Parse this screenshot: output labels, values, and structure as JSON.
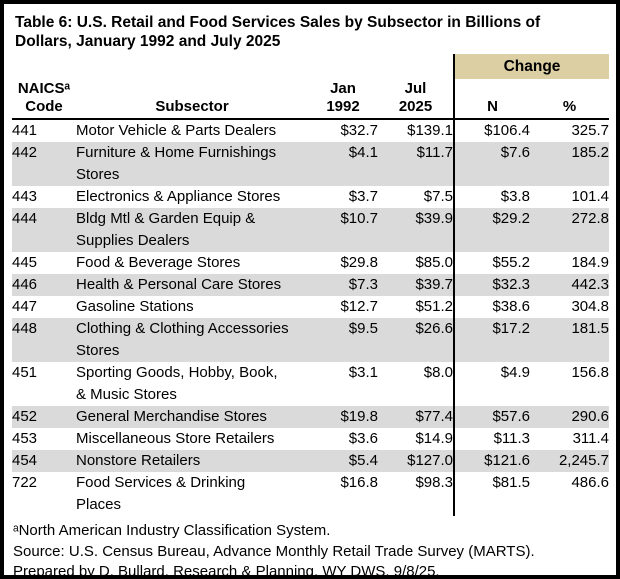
{
  "title": "Table 6: U.S. Retail and Food Services Sales by Subsector in Billions of\nDollars, January 1992 and July 2025",
  "colors": {
    "change_banner_bg": "#DCCFA3",
    "row_stripe_bg": "#DADADA",
    "border": "#000000"
  },
  "header": {
    "change_label": "Change",
    "naics_code": "NAICSᵃ\nCode",
    "subsector": "Subsector",
    "jan_1992": "Jan\n1992",
    "jul_2025": "Jul\n2025",
    "n": "N",
    "pct": "%"
  },
  "rows": [
    {
      "code": "441",
      "subsector": "Motor Vehicle & Parts Dealers",
      "jan1992": "$32.7",
      "jul2025": "$139.1",
      "n": "$106.4",
      "pct": "325.7",
      "shaded": false
    },
    {
      "code": "442",
      "subsector": "Furniture & Home Furnishings\nStores",
      "jan1992": "$4.1",
      "jul2025": "$11.7",
      "n": "$7.6",
      "pct": "185.2",
      "shaded": true
    },
    {
      "code": "443",
      "subsector": "Electronics & Appliance Stores",
      "jan1992": "$3.7",
      "jul2025": "$7.5",
      "n": "$3.8",
      "pct": "101.4",
      "shaded": false
    },
    {
      "code": "444",
      "subsector": "Bldg Mtl & Garden Equip &\nSupplies Dealers",
      "jan1992": "$10.7",
      "jul2025": "$39.9",
      "n": "$29.2",
      "pct": "272.8",
      "shaded": true
    },
    {
      "code": "445",
      "subsector": "Food & Beverage Stores",
      "jan1992": "$29.8",
      "jul2025": "$85.0",
      "n": "$55.2",
      "pct": "184.9",
      "shaded": false
    },
    {
      "code": "446",
      "subsector": "Health & Personal Care Stores",
      "jan1992": "$7.3",
      "jul2025": "$39.7",
      "n": "$32.3",
      "pct": "442.3",
      "shaded": true
    },
    {
      "code": "447",
      "subsector": "Gasoline Stations",
      "jan1992": "$12.7",
      "jul2025": "$51.2",
      "n": "$38.6",
      "pct": "304.8",
      "shaded": false
    },
    {
      "code": "448",
      "subsector": "Clothing & Clothing Accessories\nStores",
      "jan1992": "$9.5",
      "jul2025": "$26.6",
      "n": "$17.2",
      "pct": "181.5",
      "shaded": true
    },
    {
      "code": "451",
      "subsector": "Sporting Goods, Hobby, Book,\n& Music Stores",
      "jan1992": "$3.1",
      "jul2025": "$8.0",
      "n": "$4.9",
      "pct": "156.8",
      "shaded": false
    },
    {
      "code": "452",
      "subsector": "General Merchandise Stores",
      "jan1992": "$19.8",
      "jul2025": "$77.4",
      "n": "$57.6",
      "pct": "290.6",
      "shaded": true
    },
    {
      "code": "453",
      "subsector": "Miscellaneous Store Retailers",
      "jan1992": "$3.6",
      "jul2025": "$14.9",
      "n": "$11.3",
      "pct": "311.4",
      "shaded": false
    },
    {
      "code": "454",
      "subsector": "Nonstore Retailers",
      "jan1992": "$5.4",
      "jul2025": "$127.0",
      "n": "$121.6",
      "pct": "2,245.7",
      "shaded": true
    },
    {
      "code": "722",
      "subsector": "Food Services & Drinking\nPlaces",
      "jan1992": "$16.8",
      "jul2025": "$98.3",
      "n": "$81.5",
      "pct": "486.6",
      "shaded": false
    }
  ],
  "footnotes": {
    "naics_note": "ᵃNorth American Industry Classification System.",
    "source": "Source: U.S. Census Bureau, Advance Monthly Retail Trade Survey (MARTS).",
    "prepared": "Prepared by D. Bullard, Research & Planning, WY DWS, 9/8/25."
  }
}
